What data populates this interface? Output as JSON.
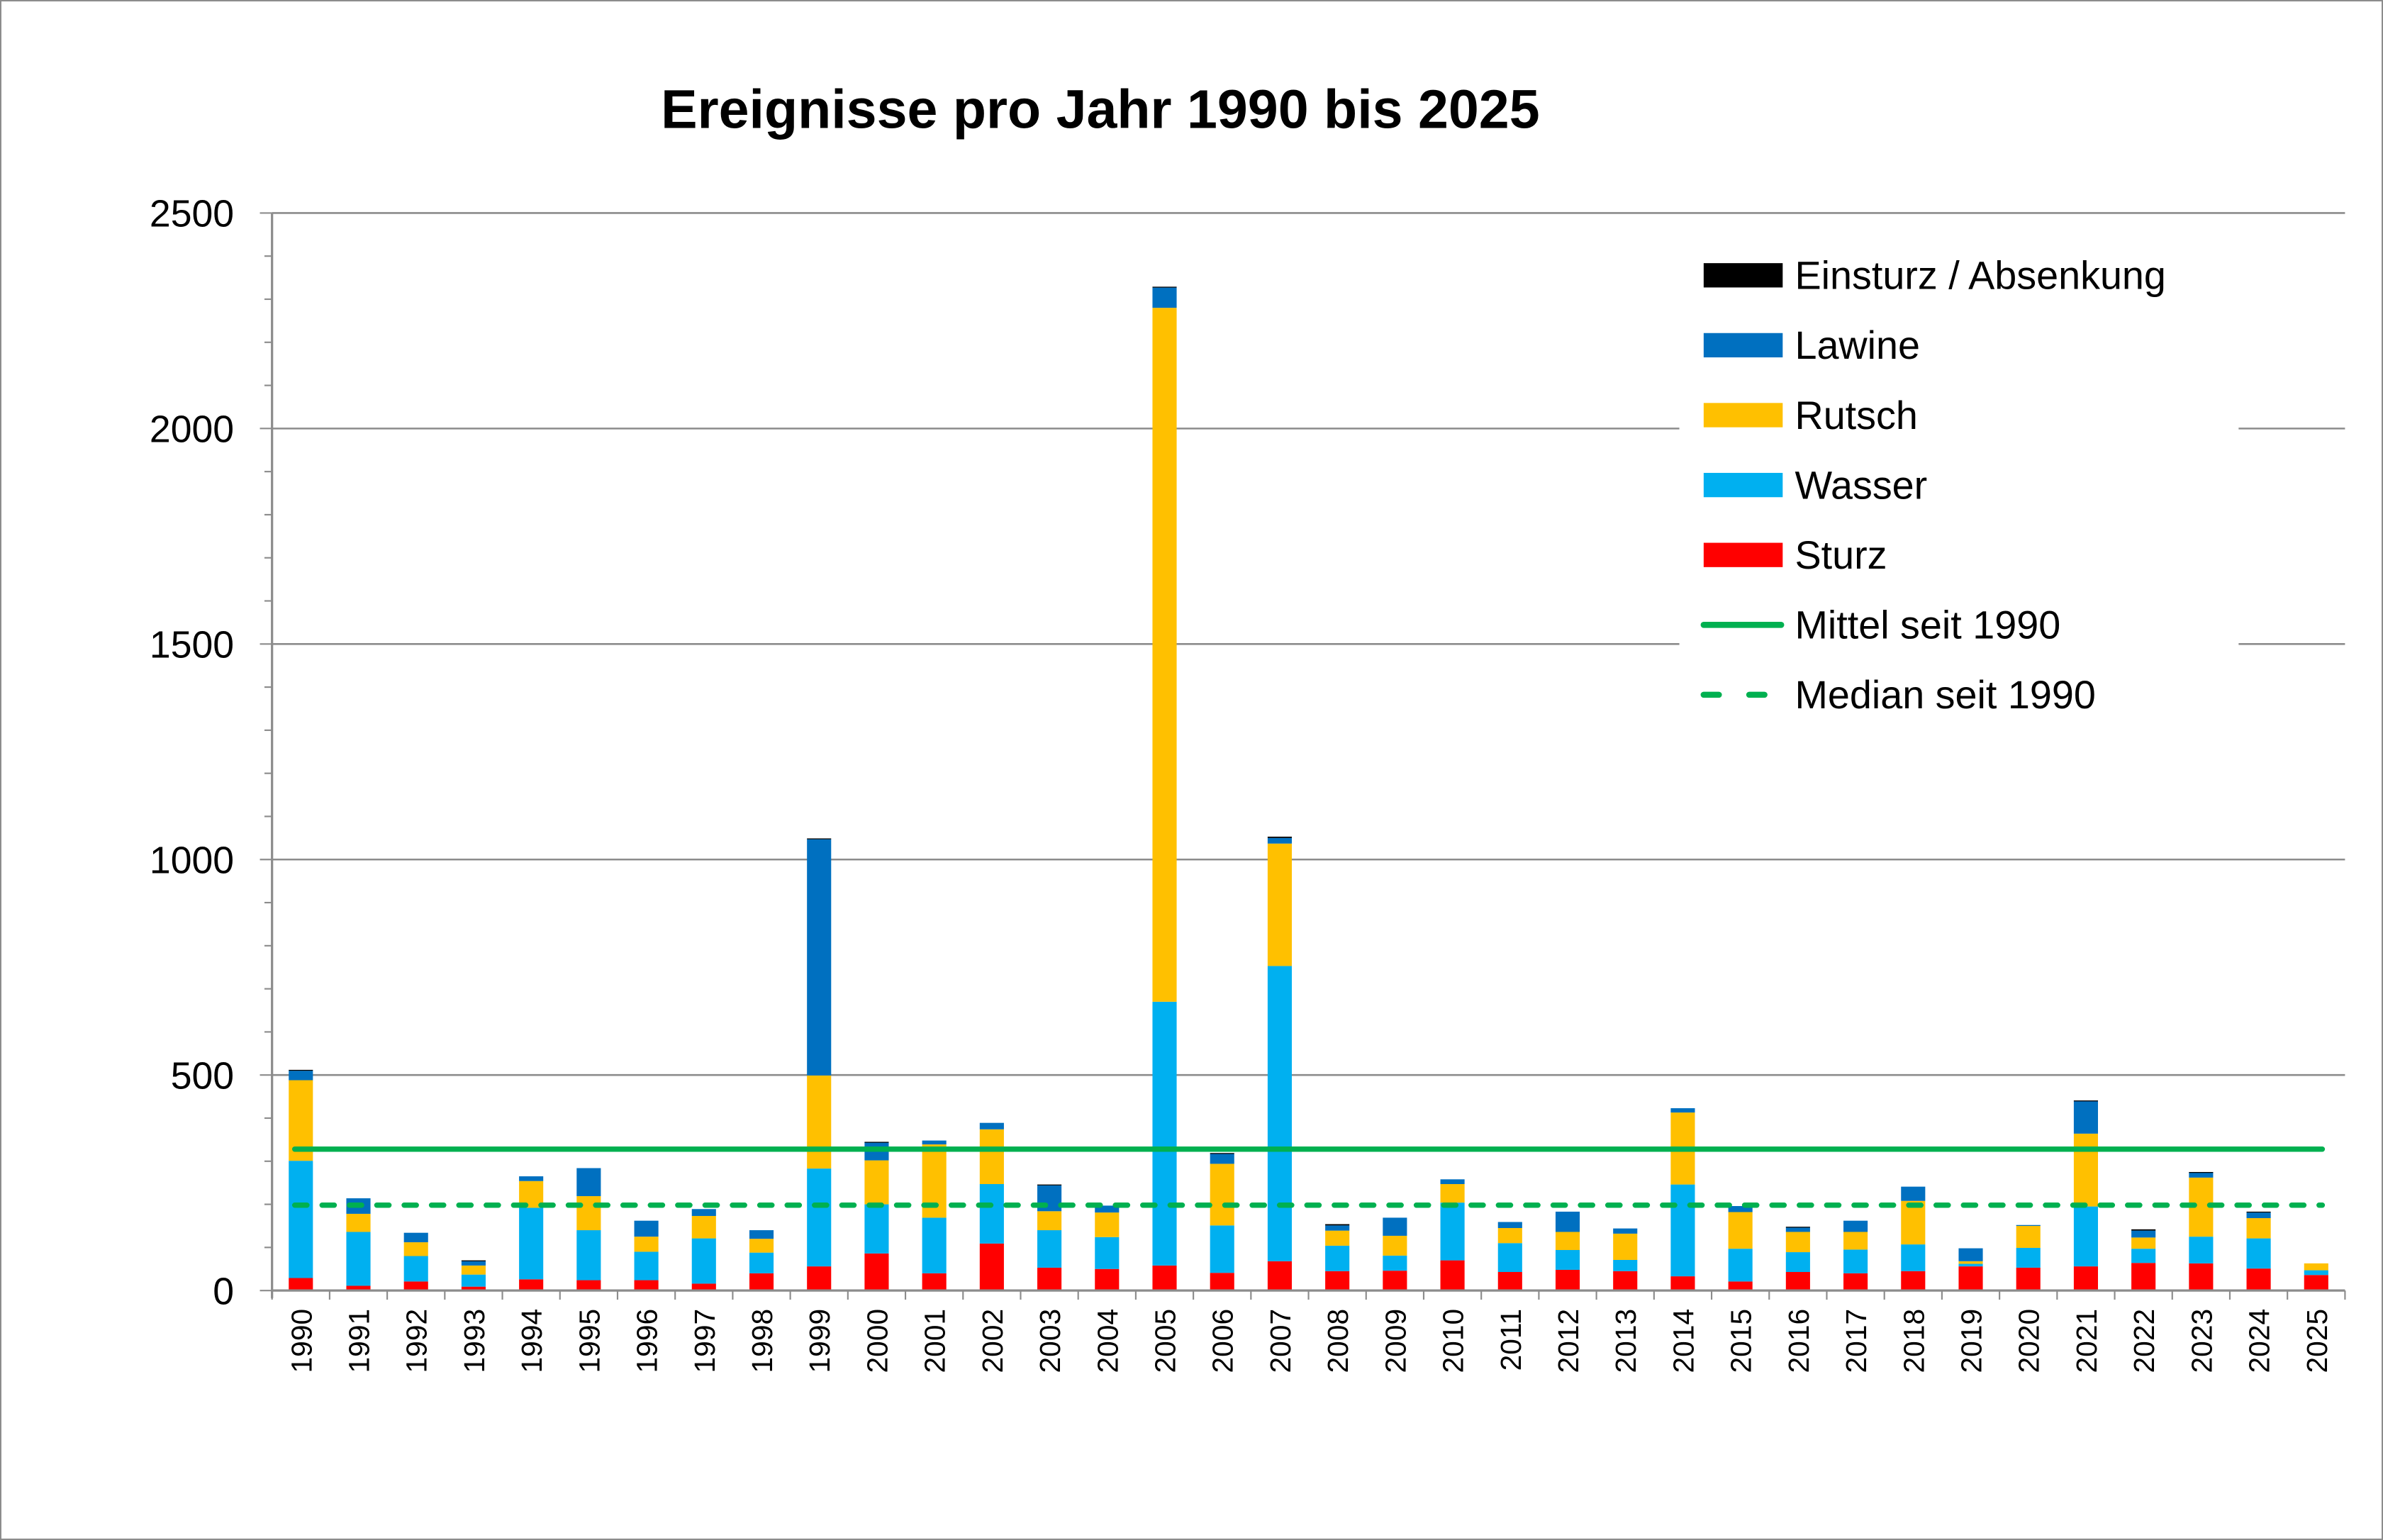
{
  "chart_data": {
    "type": "bar",
    "stacked": true,
    "title": "Ereignisse pro Jahr 1990 bis 2025",
    "xlabel": "",
    "ylabel": "",
    "ylim": [
      0,
      2500
    ],
    "yticks": [
      0,
      500,
      1000,
      1500,
      2000,
      2500
    ],
    "grid": true,
    "legend_position": "top-right",
    "categories": [
      "1990",
      "1991",
      "1992",
      "1993",
      "1994",
      "1995",
      "1996",
      "1997",
      "1998",
      "1999",
      "2000",
      "2001",
      "2002",
      "2003",
      "2004",
      "2005",
      "2006",
      "2007",
      "2008",
      "2009",
      "2010",
      "2011",
      "2012",
      "2013",
      "2014",
      "2015",
      "2016",
      "2017",
      "2018",
      "2019",
      "2020",
      "2021",
      "2022",
      "2023",
      "2024",
      "2025"
    ],
    "series": [
      {
        "name": "Sturz",
        "color": "#ff0000",
        "values": [
          29,
          11,
          21,
          9,
          26,
          24,
          24,
          16,
          40,
          56,
          86,
          40,
          109,
          53,
          50,
          58,
          41,
          68,
          45,
          46,
          70,
          43,
          48,
          45,
          33,
          21,
          43,
          40,
          45,
          56,
          53,
          56,
          64,
          63,
          51,
          36
        ]
      },
      {
        "name": "Wasser",
        "color": "#00b0f0",
        "values": [
          272,
          125,
          59,
          28,
          166,
          116,
          66,
          105,
          48,
          227,
          114,
          129,
          138,
          87,
          74,
          612,
          110,
          685,
          59,
          35,
          134,
          67,
          46,
          26,
          213,
          76,
          46,
          55,
          62,
          6,
          46,
          139,
          33,
          62,
          70,
          11
        ]
      },
      {
        "name": "Rutsch",
        "color": "#ffc000",
        "values": [
          187,
          42,
          32,
          21,
          62,
          79,
          35,
          52,
          32,
          216,
          102,
          170,
          127,
          44,
          57,
          1610,
          143,
          284,
          35,
          46,
          43,
          35,
          42,
          61,
          167,
          85,
          47,
          41,
          101,
          6,
          51,
          169,
          26,
          137,
          47,
          16
        ]
      },
      {
        "name": "Lawine",
        "color": "#0070c0",
        "values": [
          22,
          36,
          22,
          11,
          11,
          65,
          37,
          16,
          20,
          548,
          42,
          9,
          15,
          60,
          16,
          47,
          23,
          13,
          12,
          42,
          11,
          14,
          47,
          12,
          10,
          14,
          10,
          26,
          33,
          30,
          2,
          76,
          16,
          12,
          13,
          0
        ]
      },
      {
        "name": "Einsturz / Absenkung",
        "color": "#000000",
        "values": [
          2,
          0,
          0,
          1,
          0,
          0,
          0,
          0,
          0,
          2,
          1,
          0,
          0,
          2,
          0,
          2,
          2,
          3,
          3,
          0,
          0,
          0,
          0,
          0,
          0,
          0,
          2,
          0,
          0,
          0,
          0,
          1,
          3,
          1,
          2,
          0
        ]
      }
    ],
    "lines": [
      {
        "name": "Mittel seit 1990",
        "value": 328,
        "color": "#00b050",
        "style": "solid"
      },
      {
        "name": "Median seit 1990",
        "value": 198,
        "color": "#00b050",
        "style": "dashed"
      }
    ],
    "legend": [
      {
        "label": "Einsturz / Absenkung",
        "kind": "bar",
        "color": "#000000"
      },
      {
        "label": "Lawine",
        "kind": "bar",
        "color": "#0070c0"
      },
      {
        "label": "Rutsch",
        "kind": "bar",
        "color": "#ffc000"
      },
      {
        "label": "Wasser",
        "kind": "bar",
        "color": "#00b0f0"
      },
      {
        "label": "Sturz",
        "kind": "bar",
        "color": "#ff0000"
      },
      {
        "label": "Mittel seit 1990",
        "kind": "line",
        "color": "#00b050"
      },
      {
        "label": "Median seit 1990",
        "kind": "dashed",
        "color": "#00b050"
      }
    ]
  }
}
